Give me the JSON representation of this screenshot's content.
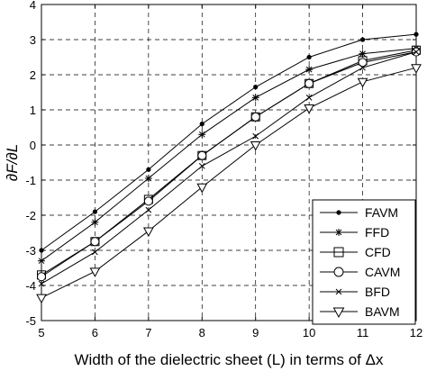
{
  "chart_data": {
    "type": "line",
    "xlabel": "Width of the dielectric sheet (L) in terms of Δx",
    "ylabel": "∂F/∂L",
    "xlim": [
      5,
      12
    ],
    "ylim": [
      -5,
      4
    ],
    "xticks": [
      "5",
      "6",
      "7",
      "8",
      "9",
      "10",
      "11",
      "12"
    ],
    "yticks": [
      "4",
      "3",
      "2",
      "1",
      "0",
      "-1",
      "-2",
      "-3",
      "-4",
      "-5"
    ],
    "grid": true,
    "legend_position": "bottom-right",
    "x": [
      5,
      6,
      7,
      8,
      9,
      10,
      11,
      12
    ],
    "series": [
      {
        "name": "FAVM",
        "marker": "dot",
        "values": [
          -3.0,
          -1.9,
          -0.7,
          0.6,
          1.65,
          2.5,
          3.0,
          3.15
        ]
      },
      {
        "name": "FFD",
        "marker": "star",
        "values": [
          -3.3,
          -2.2,
          -0.95,
          0.3,
          1.35,
          2.15,
          2.6,
          2.75
        ]
      },
      {
        "name": "CFD",
        "marker": "square",
        "values": [
          -3.7,
          -2.75,
          -1.55,
          -0.3,
          0.8,
          1.75,
          2.4,
          2.7
        ]
      },
      {
        "name": "CAVM",
        "marker": "circle",
        "values": [
          -3.75,
          -2.75,
          -1.6,
          -0.3,
          0.8,
          1.75,
          2.35,
          2.65
        ]
      },
      {
        "name": "BFD",
        "marker": "x",
        "values": [
          -3.95,
          -3.05,
          -1.85,
          -0.6,
          0.25,
          1.35,
          2.2,
          2.65
        ]
      },
      {
        "name": "BAVM",
        "marker": "triangle",
        "values": [
          -4.35,
          -3.6,
          -2.45,
          -1.2,
          0.0,
          1.05,
          1.8,
          2.2
        ]
      }
    ]
  }
}
